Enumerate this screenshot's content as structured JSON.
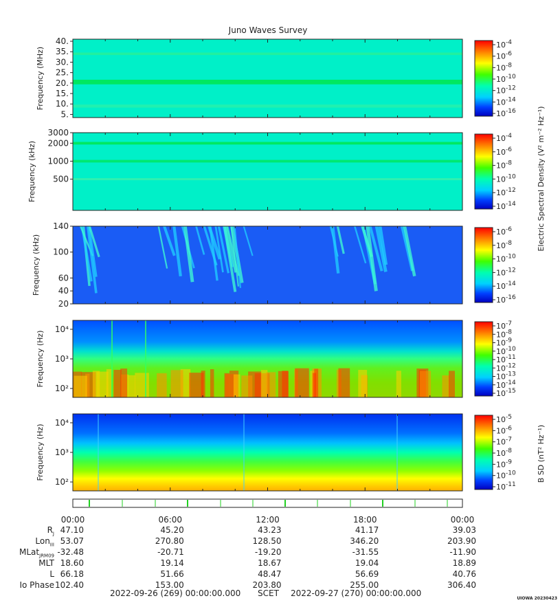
{
  "title": "Juno Waves Survey",
  "credit": "UIOWA 20230423",
  "time_ticks": [
    "00:00",
    "06:00",
    "12:00",
    "18:00",
    "00:00"
  ],
  "ephemeris": {
    "labels": [
      "R",
      "Lon",
      "MLat",
      "MLT",
      "L",
      "Io Phase"
    ],
    "label_subs": [
      "J",
      "III",
      "JRM09",
      "",
      "",
      ""
    ],
    "rows": [
      [
        "47.10",
        "45.20",
        "43.23",
        "41.17",
        "39.03"
      ],
      [
        "53.07",
        "270.80",
        "128.50",
        "346.20",
        "203.90"
      ],
      [
        "-32.48",
        "-20.71",
        "-19.20",
        "-31.55",
        "-11.90"
      ],
      [
        "18.60",
        "19.14",
        "18.67",
        "19.04",
        "18.89"
      ],
      [
        "66.18",
        "51.66",
        "48.47",
        "56.69",
        "40.76"
      ],
      [
        "102.40",
        "153.00",
        "203.80",
        "255.00",
        "306.40"
      ]
    ]
  },
  "scet": {
    "start": "2022-09-26 (269) 00:00:00.000",
    "label": "SCET",
    "end": "2022-09-27 (270) 00:00:00.000"
  },
  "colors": {
    "bg": "#00ffd9",
    "low": "#2060ff",
    "high": "#ff2000"
  },
  "chart_data": [
    {
      "type": "heatmap",
      "ylabel": "Frequency (MHz)",
      "yscale": "linear",
      "ylim": [
        3.5,
        41
      ],
      "yticks": [
        5,
        10,
        15,
        20,
        25,
        30,
        35,
        40
      ],
      "yticklabels": [
        "5.",
        "10.",
        "15.",
        "20.",
        "25.",
        "30.",
        "35.",
        "40."
      ],
      "colorbar": {
        "ticks": [
          "-4",
          "-6",
          "-8",
          "-10",
          "-12",
          "-14",
          "-16"
        ],
        "label": ""
      }
    },
    {
      "type": "heatmap",
      "ylabel": "Frequency (kHz)",
      "yscale": "log",
      "ylim": [
        150,
        3000
      ],
      "yticks": [
        500,
        1000,
        2000,
        3000
      ],
      "yticklabels": [
        "500",
        "1000",
        "2000",
        "3000"
      ],
      "colorbar": {
        "ticks": [
          "-4",
          "-6",
          "-8",
          "-10",
          "-12",
          "-14"
        ],
        "label": ""
      }
    },
    {
      "type": "heatmap",
      "ylabel": "Frequency (kHz)",
      "yscale": "linear",
      "ylim": [
        20,
        140
      ],
      "yticks": [
        20,
        40,
        60,
        100,
        140
      ],
      "yticklabels": [
        "20",
        "40",
        "60",
        "100",
        "140"
      ],
      "colorbar": {
        "ticks": [
          "-6",
          "-8",
          "-10",
          "-12",
          "-14",
          "-16"
        ],
        "label": "Electric Spectral Density (V² m⁻² Hz⁻¹)"
      }
    },
    {
      "type": "heatmap",
      "ylabel": "Frequency (Hz)",
      "yscale": "log",
      "ylim": [
        50,
        20000
      ],
      "yticks": [
        100,
        1000,
        10000
      ],
      "yticklabels": [
        "10²",
        "10³",
        "10⁴"
      ],
      "colorbar": {
        "ticks": [
          "-7",
          "-8",
          "-9",
          "-10",
          "-11",
          "-12",
          "-13",
          "-14",
          "-15"
        ],
        "label": ""
      }
    },
    {
      "type": "heatmap",
      "ylabel": "Frequency (Hz)",
      "yscale": "log",
      "ylim": [
        50,
        20000
      ],
      "yticks": [
        100,
        1000,
        10000
      ],
      "yticklabels": [
        "10²",
        "10³",
        "10⁴"
      ],
      "colorbar": {
        "ticks": [
          "-5",
          "-6",
          "-7",
          "-8",
          "-9",
          "-10",
          "-11"
        ],
        "label": "B SD (nT² Hz⁻¹)"
      }
    }
  ]
}
